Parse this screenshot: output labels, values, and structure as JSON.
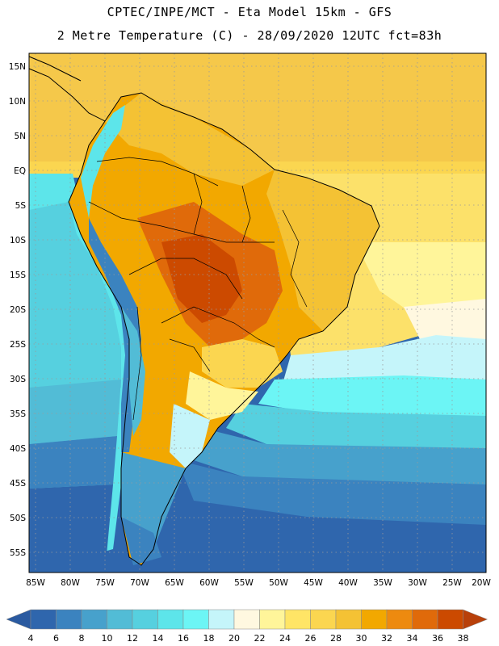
{
  "header": {
    "line1": "CPTEC/INPE/MCT -  Eta Model 15km - GFS",
    "line2": "2 Metre Temperature (C) - 28/09/2020 12UTC fct=83h"
  },
  "axes": {
    "lat_labels": [
      "15N",
      "10N",
      "5N",
      "EQ",
      "5S",
      "10S",
      "15S",
      "20S",
      "25S",
      "30S",
      "35S",
      "40S",
      "45S",
      "50S",
      "55S"
    ],
    "lat_values": [
      15,
      10,
      5,
      0,
      -5,
      -10,
      -15,
      -20,
      -25,
      -30,
      -35,
      -40,
      -45,
      -50,
      -55
    ],
    "lon_labels": [
      "85W",
      "80W",
      "75W",
      "70W",
      "65W",
      "60W",
      "55W",
      "50W",
      "45W",
      "40W",
      "35W",
      "30W",
      "25W",
      "20W"
    ],
    "lon_values": [
      -85,
      -80,
      -75,
      -70,
      -65,
      -60,
      -55,
      -50,
      -45,
      -40,
      -35,
      -30,
      -25,
      -20
    ],
    "lat_range": [
      -58,
      16.5
    ],
    "lon_range": [
      -85.5,
      -20
    ]
  },
  "colorbar": {
    "ticks": [
      "4",
      "6",
      "8",
      "10",
      "12",
      "14",
      "16",
      "18",
      "20",
      "22",
      "24",
      "26",
      "28",
      "30",
      "32",
      "34",
      "36",
      "38"
    ],
    "colors": [
      "#2f66ad",
      "#3b83bf",
      "#47a1cc",
      "#52bcd6",
      "#56d0df",
      "#5de5ea",
      "#6cf5f5",
      "#c5f5fa",
      "#fff8e0",
      "#fff59a",
      "#ffe566",
      "#fbd650",
      "#f4c234",
      "#f2a800",
      "#ed8a0f",
      "#e06a0a",
      "#cc4a00"
    ],
    "low_color": "#2a5aa0",
    "high_color": "#b8400a"
  }
}
